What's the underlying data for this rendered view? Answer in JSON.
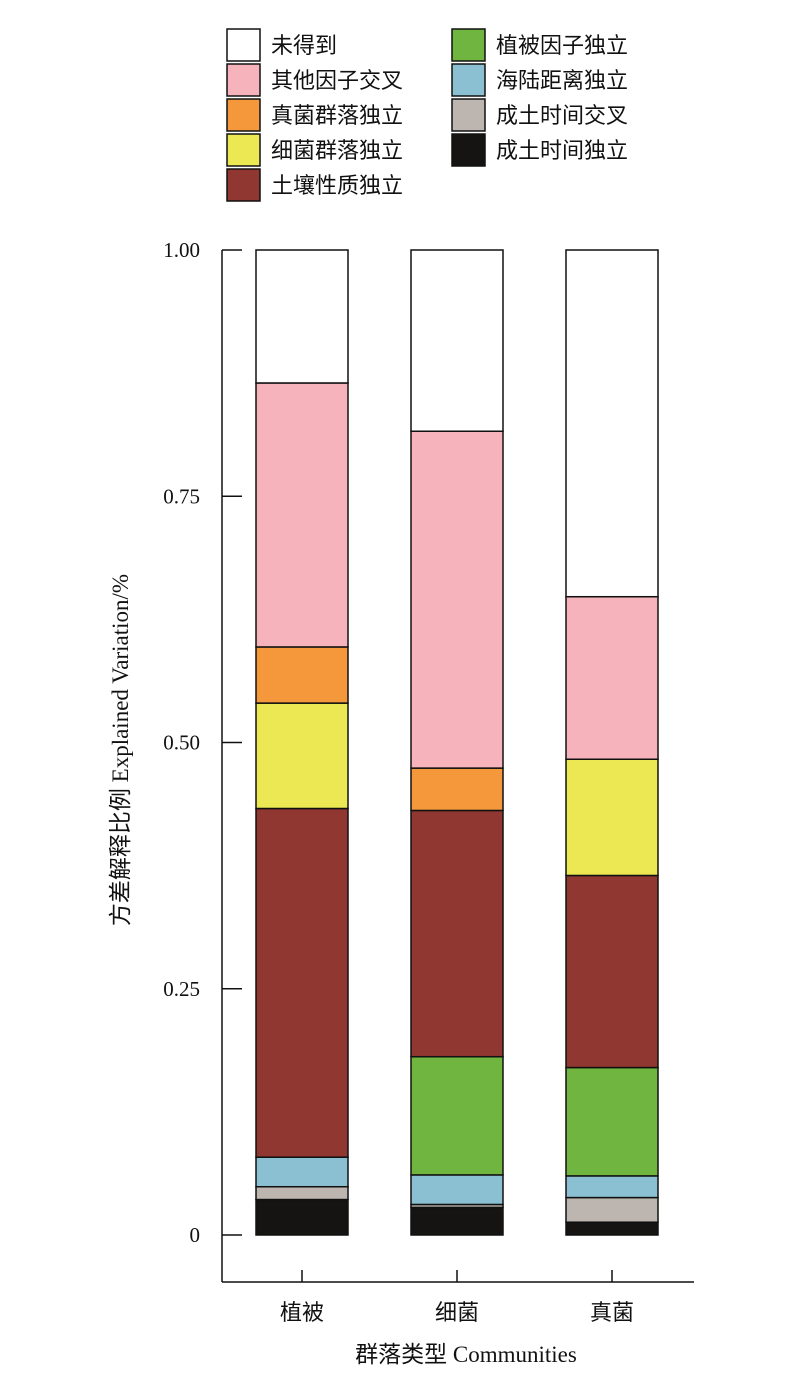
{
  "chart_data": {
    "type": "bar",
    "stacked": true,
    "categories": [
      "植被",
      "细菌",
      "真菌"
    ],
    "xlabel": "群落类型 Communities",
    "ylabel": "方差解释比例 Explained Variation/%",
    "ylim": [
      0,
      1
    ],
    "yticks": [
      {
        "value": 0,
        "label": "0"
      },
      {
        "value": 0.25,
        "label": "0.25"
      },
      {
        "value": 0.5,
        "label": "0.50"
      },
      {
        "value": 0.75,
        "label": "0.75"
      },
      {
        "value": 1,
        "label": "1.00"
      }
    ],
    "grid": false,
    "legend_position": "top",
    "series": [
      {
        "name": "成土时间独立",
        "color": "#161412",
        "values": [
          0.036,
          0.028,
          0.013
        ]
      },
      {
        "name": "成土时间交叉",
        "color": "#bdb6b0",
        "values": [
          0.013,
          0.003,
          0.025
        ]
      },
      {
        "name": "海陆距离独立",
        "color": "#8ac0d2",
        "values": [
          0.03,
          0.03,
          0.022
        ]
      },
      {
        "name": "植被因子独立",
        "color": "#70b540",
        "values": [
          0,
          0.12,
          0.11
        ]
      },
      {
        "name": "土壤性质独立",
        "color": "#8f3730",
        "values": [
          0.354,
          0.25,
          0.195
        ]
      },
      {
        "name": "细菌群落独立",
        "color": "#ebe854",
        "values": [
          0.107,
          0,
          0.118
        ]
      },
      {
        "name": "真菌群落独立",
        "color": "#f5983c",
        "values": [
          0.057,
          0.043,
          0
        ]
      },
      {
        "name": "其他因子交叉",
        "color": "#f7b3bb",
        "values": [
          0.268,
          0.342,
          0.165
        ]
      },
      {
        "name": "未得到",
        "color": "#ffffff",
        "values": [
          0.135,
          0.184,
          0.352
        ]
      }
    ],
    "legend_order": [
      "未得到",
      "其他因子交叉",
      "真菌群落独立",
      "细菌群落独立",
      "土壤性质独立",
      "植被因子独立",
      "海陆距离独立",
      "成土时间交叉",
      "成土时间独立"
    ]
  }
}
